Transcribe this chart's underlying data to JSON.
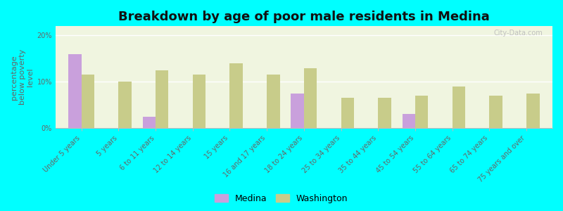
{
  "title": "Breakdown by age of poor male residents in Medina",
  "ylabel": "percentage\nbelow poverty\nlevel",
  "categories": [
    "Under 5 years",
    "5 years",
    "6 to 11 years",
    "12 to 14 years",
    "15 years",
    "16 and 17 years",
    "18 to 24 years",
    "25 to 34 years",
    "35 to 44 years",
    "45 to 54 years",
    "55 to 64 years",
    "65 to 74 years",
    "75 years and over"
  ],
  "medina_values": [
    16.0,
    0,
    2.5,
    0,
    0,
    0,
    7.5,
    0,
    0,
    3.0,
    0,
    0,
    0
  ],
  "washington_values": [
    11.5,
    10.0,
    12.5,
    11.5,
    14.0,
    11.5,
    13.0,
    6.5,
    6.5,
    7.0,
    9.0,
    7.0,
    7.5
  ],
  "medina_color": "#c9a0dc",
  "washington_color": "#c8cc8a",
  "background_color": "#00ffff",
  "plot_bg": "#f0f5e0",
  "ylim": [
    0,
    22
  ],
  "yticks": [
    0,
    10,
    20
  ],
  "ytick_labels": [
    "0%",
    "10%",
    "20%"
  ],
  "bar_width": 0.35,
  "title_fontsize": 13,
  "axis_label_fontsize": 8,
  "tick_fontsize": 7,
  "legend_fontsize": 9,
  "watermark": "City-Data.com"
}
